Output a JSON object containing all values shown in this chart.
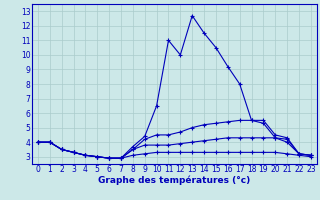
{
  "title": "Graphe des températures (°c)",
  "x_labels": [
    "0",
    "1",
    "2",
    "3",
    "4",
    "5",
    "6",
    "7",
    "8",
    "9",
    "10",
    "11",
    "12",
    "13",
    "14",
    "15",
    "16",
    "17",
    "18",
    "19",
    "20",
    "21",
    "22",
    "23"
  ],
  "ylim": [
    2.5,
    13.5
  ],
  "xlim": [
    -0.5,
    23.5
  ],
  "yticks": [
    3,
    4,
    5,
    6,
    7,
    8,
    9,
    10,
    11,
    12,
    13
  ],
  "background_color": "#cce8e8",
  "grid_color": "#aacccc",
  "line_color": "#0000bb",
  "lines": [
    {
      "x": [
        0,
        1,
        2,
        3,
        4,
        5,
        6,
        7,
        8,
        9,
        10,
        11,
        12,
        13,
        14,
        15,
        16,
        17,
        18,
        19,
        20,
        21,
        22,
        23
      ],
      "y": [
        4.0,
        4.0,
        3.5,
        3.3,
        3.1,
        3.0,
        2.9,
        2.9,
        3.7,
        4.4,
        6.5,
        11.0,
        10.0,
        12.7,
        11.5,
        10.5,
        9.2,
        8.0,
        5.5,
        5.3,
        4.3,
        4.0,
        3.2,
        3.1
      ]
    },
    {
      "x": [
        0,
        1,
        2,
        3,
        4,
        5,
        6,
        7,
        8,
        9,
        10,
        11,
        12,
        13,
        14,
        15,
        16,
        17,
        18,
        19,
        20,
        21,
        22,
        23
      ],
      "y": [
        4.0,
        4.0,
        3.5,
        3.3,
        3.1,
        3.0,
        2.9,
        2.9,
        3.5,
        4.2,
        4.5,
        4.5,
        4.7,
        5.0,
        5.2,
        5.3,
        5.4,
        5.5,
        5.5,
        5.5,
        4.5,
        4.3,
        3.2,
        3.1
      ]
    },
    {
      "x": [
        0,
        1,
        2,
        3,
        4,
        5,
        6,
        7,
        8,
        9,
        10,
        11,
        12,
        13,
        14,
        15,
        16,
        17,
        18,
        19,
        20,
        21,
        22,
        23
      ],
      "y": [
        4.0,
        4.0,
        3.5,
        3.3,
        3.1,
        3.0,
        2.9,
        2.9,
        3.5,
        3.8,
        3.8,
        3.8,
        3.9,
        4.0,
        4.1,
        4.2,
        4.3,
        4.3,
        4.3,
        4.3,
        4.3,
        4.2,
        3.2,
        3.1
      ]
    },
    {
      "x": [
        0,
        1,
        2,
        3,
        4,
        5,
        6,
        7,
        8,
        9,
        10,
        11,
        12,
        13,
        14,
        15,
        16,
        17,
        18,
        19,
        20,
        21,
        22,
        23
      ],
      "y": [
        4.0,
        4.0,
        3.5,
        3.3,
        3.1,
        3.0,
        2.9,
        2.9,
        3.1,
        3.2,
        3.3,
        3.3,
        3.3,
        3.3,
        3.3,
        3.3,
        3.3,
        3.3,
        3.3,
        3.3,
        3.3,
        3.2,
        3.1,
        3.0
      ]
    }
  ]
}
